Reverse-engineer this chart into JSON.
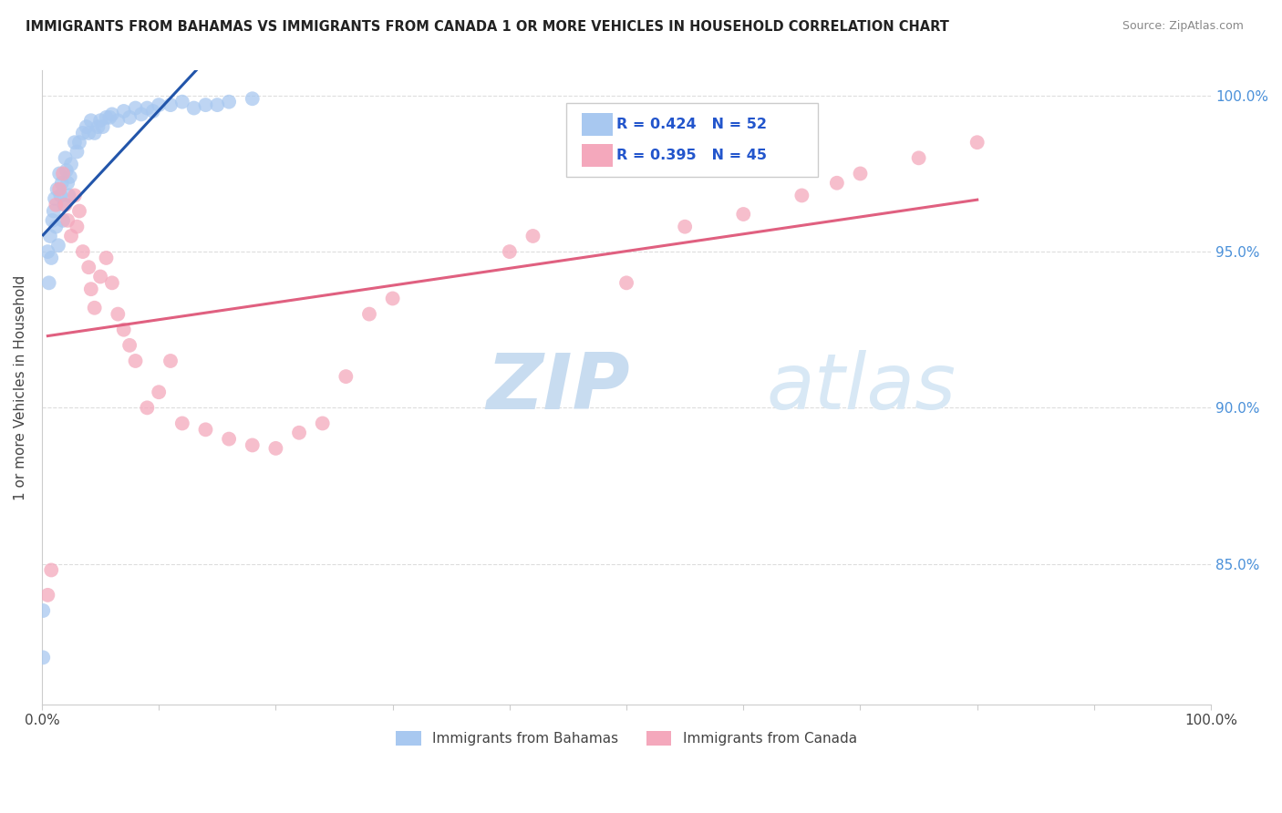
{
  "title": "IMMIGRANTS FROM BAHAMAS VS IMMIGRANTS FROM CANADA 1 OR MORE VEHICLES IN HOUSEHOLD CORRELATION CHART",
  "source": "Source: ZipAtlas.com",
  "ylabel": "1 or more Vehicles in Household",
  "xlim": [
    0.0,
    1.0
  ],
  "ylim": [
    0.805,
    1.008
  ],
  "ytick_positions": [
    0.85,
    0.9,
    0.95,
    1.0
  ],
  "right_yticklabels": [
    "85.0%",
    "90.0%",
    "95.0%",
    "100.0%"
  ],
  "R_bahamas": 0.424,
  "N_bahamas": 52,
  "R_canada": 0.395,
  "N_canada": 45,
  "color_bahamas": "#a8c8f0",
  "color_canada": "#f4a8bc",
  "trendline_bahamas_color": "#2255aa",
  "trendline_canada_color": "#e06080",
  "watermark_color": "#ddeeff",
  "grid_color": "#dddddd",
  "bahamas_x": [
    0.001,
    0.001,
    0.005,
    0.006,
    0.007,
    0.008,
    0.009,
    0.01,
    0.011,
    0.012,
    0.013,
    0.014,
    0.015,
    0.016,
    0.017,
    0.018,
    0.019,
    0.02,
    0.021,
    0.022,
    0.023,
    0.024,
    0.025,
    0.028,
    0.03,
    0.032,
    0.035,
    0.038,
    0.04,
    0.042,
    0.045,
    0.048,
    0.05,
    0.052,
    0.055,
    0.058,
    0.06,
    0.065,
    0.07,
    0.075,
    0.08,
    0.085,
    0.09,
    0.095,
    0.1,
    0.11,
    0.12,
    0.13,
    0.14,
    0.15,
    0.16,
    0.18
  ],
  "bahamas_y": [
    0.82,
    0.835,
    0.95,
    0.94,
    0.955,
    0.948,
    0.96,
    0.963,
    0.967,
    0.958,
    0.97,
    0.952,
    0.975,
    0.968,
    0.972,
    0.96,
    0.965,
    0.98,
    0.976,
    0.972,
    0.968,
    0.974,
    0.978,
    0.985,
    0.982,
    0.985,
    0.988,
    0.99,
    0.988,
    0.992,
    0.988,
    0.99,
    0.992,
    0.99,
    0.993,
    0.993,
    0.994,
    0.992,
    0.995,
    0.993,
    0.996,
    0.994,
    0.996,
    0.995,
    0.997,
    0.997,
    0.998,
    0.996,
    0.997,
    0.997,
    0.998,
    0.999
  ],
  "canada_x": [
    0.005,
    0.008,
    0.012,
    0.015,
    0.018,
    0.02,
    0.022,
    0.025,
    0.028,
    0.03,
    0.032,
    0.035,
    0.04,
    0.042,
    0.045,
    0.05,
    0.055,
    0.06,
    0.065,
    0.07,
    0.075,
    0.08,
    0.09,
    0.1,
    0.11,
    0.12,
    0.14,
    0.16,
    0.18,
    0.2,
    0.22,
    0.24,
    0.26,
    0.28,
    0.3,
    0.4,
    0.42,
    0.5,
    0.55,
    0.6,
    0.65,
    0.68,
    0.7,
    0.75,
    0.8
  ],
  "canada_y": [
    0.84,
    0.848,
    0.965,
    0.97,
    0.975,
    0.965,
    0.96,
    0.955,
    0.968,
    0.958,
    0.963,
    0.95,
    0.945,
    0.938,
    0.932,
    0.942,
    0.948,
    0.94,
    0.93,
    0.925,
    0.92,
    0.915,
    0.9,
    0.905,
    0.915,
    0.895,
    0.893,
    0.89,
    0.888,
    0.887,
    0.892,
    0.895,
    0.91,
    0.93,
    0.935,
    0.95,
    0.955,
    0.94,
    0.958,
    0.962,
    0.968,
    0.972,
    0.975,
    0.98,
    0.985
  ]
}
